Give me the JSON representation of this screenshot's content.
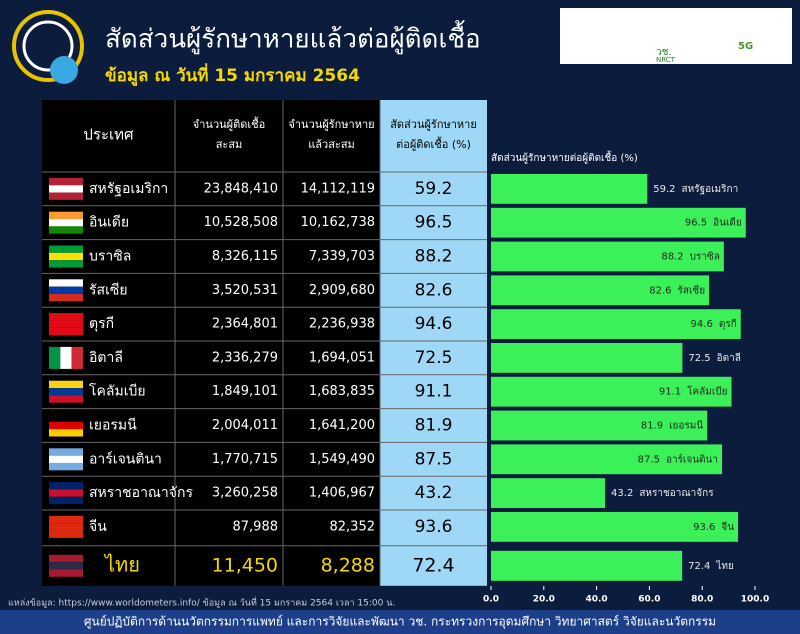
{
  "header": {
    "title": "สัดส่วนผู้รักษาหายแล้วต่อผู้ติดเชื้อ",
    "subtitle": "ข้อมูล ณ วันที่ 15 มกราคม 2564",
    "logos": [
      "วช.",
      "NRCT",
      "5G"
    ]
  },
  "table": {
    "columns": [
      [
        "ประเทศ"
      ],
      [
        "จำนวนผู้ติดเชื้อ",
        "สะสม"
      ],
      [
        "จำนวนผู้รักษาหาย",
        "แล้วสะสม"
      ],
      [
        "สัดส่วนผู้รักษาหาย",
        "ต่อผู้ติดเชื้อ (%)"
      ]
    ],
    "rows": [
      [
        "สหรัฐอเมริกา",
        "23,848,410",
        "14,112,119",
        "59.2"
      ],
      [
        "อินเดีย",
        "10,528,508",
        "10,162,738",
        "96.5"
      ],
      [
        "บราซิล",
        "8,326,115",
        "7,339,703",
        "88.2"
      ],
      [
        "รัสเซีย",
        "3,520,531",
        "2,909,680",
        "82.6"
      ],
      [
        "ตุรกี",
        "2,364,801",
        "2,236,938",
        "94.6"
      ],
      [
        "อิตาลี",
        "2,336,279",
        "1,694,051",
        "72.5"
      ],
      [
        "โคลัมเบีย",
        "1,849,101",
        "1,683,835",
        "91.1"
      ],
      [
        "เยอรมนี",
        "2,004,011",
        "1,641,200",
        "81.9"
      ],
      [
        "อาร์เจนตินา",
        "1,770,715",
        "1,549,490",
        "87.5"
      ],
      [
        "สหราชอาณาจักร",
        "3,260,258",
        "1,406,967",
        "43.2"
      ],
      [
        "จีน",
        "87,988",
        "82,352",
        "93.6"
      ],
      [
        "ไทย",
        "11,450",
        "8,288",
        "72.4"
      ]
    ]
  },
  "chart_data": {
    "type": "bar",
    "orientation": "horizontal",
    "title": "สัดส่วนผู้รักษาหายต่อผู้ติดเชื้อ (%)",
    "categories": [
      "สหรัฐอเมริกา",
      "อินเดีย",
      "บราซิล",
      "รัสเซีย",
      "ตุรกี",
      "อิตาลี",
      "โคลัมเบีย",
      "เยอรมนี",
      "อาร์เจนตินา",
      "สหราชอาณาจักร",
      "จีน",
      "ไทย"
    ],
    "values": [
      59.2,
      96.5,
      88.2,
      82.6,
      94.6,
      72.5,
      91.1,
      81.9,
      87.5,
      43.2,
      93.6,
      72.4
    ],
    "color": "#3cf05a",
    "xlim": [
      0,
      100
    ],
    "xticks": [
      {
        "value": 0,
        "label": "0.0"
      },
      {
        "value": 20,
        "label": "20.0"
      },
      {
        "value": 40,
        "label": "40.0"
      },
      {
        "value": 60,
        "label": "60.0"
      },
      {
        "value": 80,
        "label": "80.0"
      },
      {
        "value": 100,
        "label": "100.0"
      }
    ]
  },
  "source": "แหล่งข้อมูล: https://www.worldometers.info/ ข้อมูล ณ วันที่ 15 มกราคม 2564 เวลา 15:00 น.",
  "footer": "ศูนย์ปฏิบัติการด้านนวัตกรรมการแพทย์ และการวิจัยและพัฒนา วช.  กระทรวงการอุดมศึกษา วิทยาศาสตร์ วิจัยและนวัตกรรม"
}
